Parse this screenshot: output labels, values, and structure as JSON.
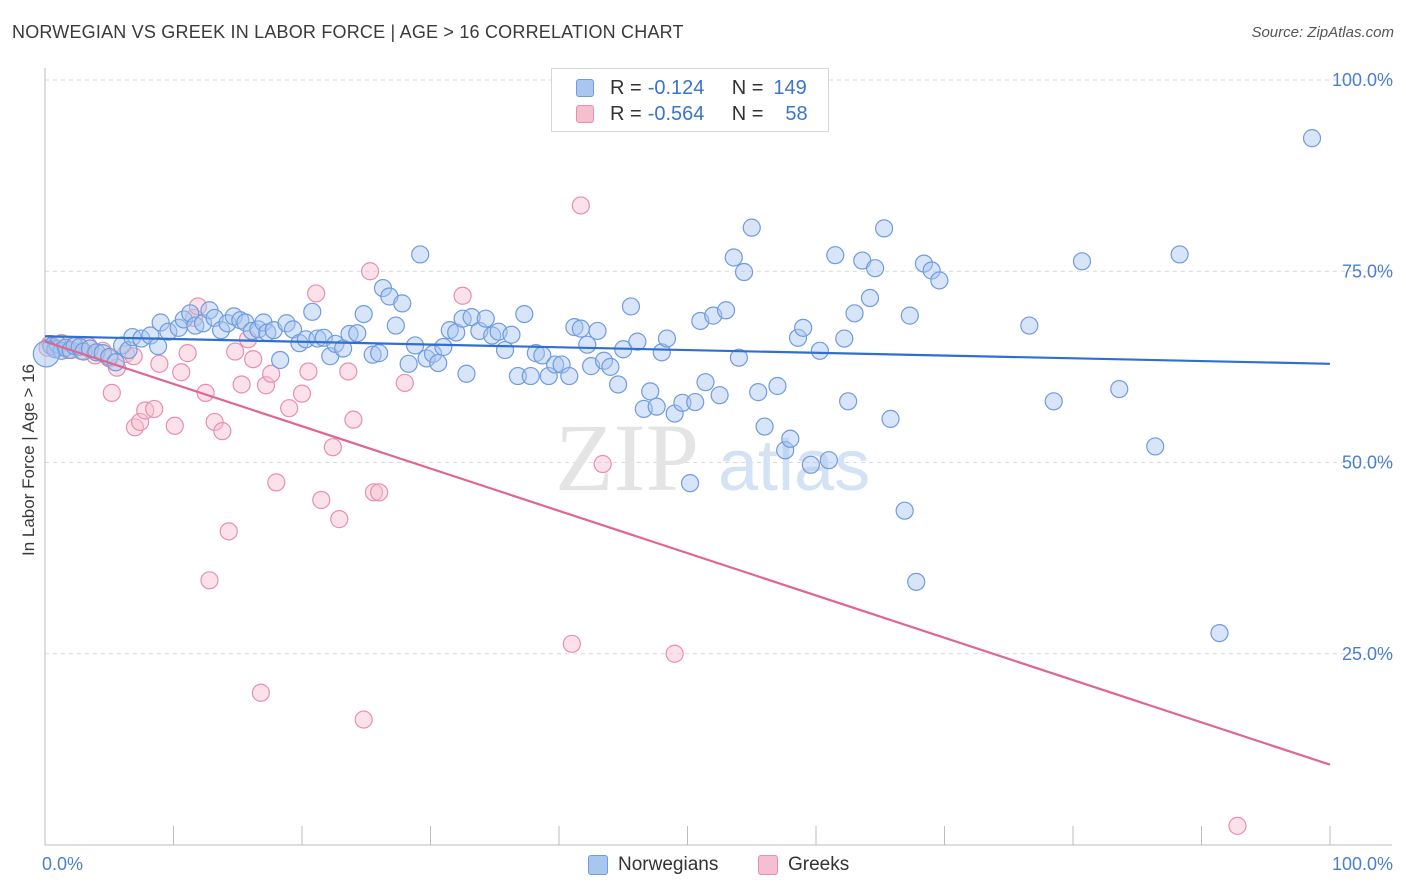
{
  "title": "NORWEGIAN VS GREEK IN LABOR FORCE | AGE > 16 CORRELATION CHART",
  "source": "Source: ZipAtlas.com",
  "watermark": {
    "zip": "ZIP",
    "atlas": "atlas"
  },
  "colors": {
    "blue_fill": "#a9c6ef",
    "blue_stroke": "#6f9be0",
    "blue_line": "#2e6fd1",
    "pink_fill": "#f6bfd0",
    "pink_stroke": "#e98fab",
    "pink_line": "#e06690",
    "grid": "#d9d9d9",
    "tick_text": "#4a7fd0"
  },
  "legend": {
    "rows": [
      {
        "r_label": "R =",
        "r_value": "-0.124",
        "n_label": "N =",
        "n_value": "149"
      },
      {
        "r_label": "R =",
        "r_value": "-0.564",
        "n_label": "N =",
        "n_value": "58"
      }
    ]
  },
  "bottom_legend": {
    "norwegians": "Norwegians",
    "greeks": "Greeks"
  },
  "chart_data": {
    "type": "scatter",
    "title": "NORWEGIAN VS GREEK IN LABOR FORCE | AGE > 16 CORRELATION CHART",
    "xlabel": "",
    "ylabel": "In Labor Force | Age > 16",
    "xlim": [
      0,
      100
    ],
    "ylim": [
      0,
      100
    ],
    "x_tick_labels": [
      "0.0%",
      "100.0%"
    ],
    "y_tick_values": [
      25,
      50,
      75,
      100
    ],
    "y_tick_labels": [
      "25.0%",
      "50.0%",
      "75.0%",
      "100.0%"
    ],
    "grid": true,
    "series": [
      {
        "name": "Norwegians",
        "r": -0.124,
        "n": 149,
        "trend": {
          "x": [
            0,
            100
          ],
          "y": [
            66.5,
            62.9
          ]
        },
        "points": [
          [
            0.5,
            65.2
          ],
          [
            0.8,
            64.8
          ],
          [
            1.0,
            65.4
          ],
          [
            1.3,
            64.6
          ],
          [
            1.6,
            65.0
          ],
          [
            2.0,
            64.7
          ],
          [
            2.3,
            65.2
          ],
          [
            2.7,
            65.1
          ],
          [
            3.0,
            64.5
          ],
          [
            3.5,
            64.9
          ],
          [
            4.0,
            64.4
          ],
          [
            4.5,
            64.3
          ],
          [
            5.0,
            63.8
          ],
          [
            5.5,
            63.1
          ],
          [
            6.0,
            65.3
          ],
          [
            6.5,
            64.7
          ],
          [
            6.8,
            66.4
          ],
          [
            7.5,
            66.2
          ],
          [
            8.2,
            66.6
          ],
          [
            8.8,
            65.2
          ],
          [
            9.0,
            68.3
          ],
          [
            9.6,
            67.1
          ],
          [
            10.4,
            67.6
          ],
          [
            10.8,
            68.7
          ],
          [
            11.3,
            69.5
          ],
          [
            11.7,
            67.9
          ],
          [
            12.3,
            68.2
          ],
          [
            12.8,
            69.9
          ],
          [
            13.2,
            68.9
          ],
          [
            13.7,
            67.3
          ],
          [
            14.2,
            68.2
          ],
          [
            14.7,
            69.1
          ],
          [
            15.2,
            68.6
          ],
          [
            15.6,
            68.3
          ],
          [
            16.1,
            67.2
          ],
          [
            16.6,
            67.4
          ],
          [
            17.0,
            68.3
          ],
          [
            17.3,
            67.0
          ],
          [
            17.8,
            67.3
          ],
          [
            18.3,
            63.4
          ],
          [
            18.8,
            68.2
          ],
          [
            19.3,
            67.4
          ],
          [
            19.8,
            65.6
          ],
          [
            20.3,
            66.1
          ],
          [
            20.8,
            69.7
          ],
          [
            21.2,
            66.2
          ],
          [
            21.7,
            66.3
          ],
          [
            22.2,
            63.9
          ],
          [
            22.6,
            65.5
          ],
          [
            23.2,
            64.9
          ],
          [
            23.7,
            66.8
          ],
          [
            24.3,
            66.9
          ],
          [
            24.8,
            69.4
          ],
          [
            25.5,
            64.1
          ],
          [
            26.0,
            64.3
          ],
          [
            26.3,
            72.8
          ],
          [
            26.8,
            71.7
          ],
          [
            27.3,
            67.9
          ],
          [
            27.8,
            70.8
          ],
          [
            28.3,
            62.9
          ],
          [
            28.8,
            65.3
          ],
          [
            29.2,
            77.2
          ],
          [
            29.7,
            63.6
          ],
          [
            30.2,
            64.2
          ],
          [
            30.6,
            63.0
          ],
          [
            31.0,
            65.1
          ],
          [
            31.5,
            67.3
          ],
          [
            32.0,
            67.0
          ],
          [
            32.5,
            68.8
          ],
          [
            32.8,
            61.6
          ],
          [
            33.2,
            69.0
          ],
          [
            33.8,
            67.2
          ],
          [
            34.3,
            68.8
          ],
          [
            34.8,
            66.6
          ],
          [
            35.3,
            67.1
          ],
          [
            35.8,
            64.7
          ],
          [
            36.3,
            66.7
          ],
          [
            36.8,
            61.3
          ],
          [
            37.3,
            69.4
          ],
          [
            37.8,
            61.3
          ],
          [
            38.2,
            64.3
          ],
          [
            38.7,
            64.0
          ],
          [
            39.2,
            61.3
          ],
          [
            39.7,
            62.8
          ],
          [
            40.2,
            62.8
          ],
          [
            40.8,
            61.3
          ],
          [
            41.2,
            67.7
          ],
          [
            41.7,
            67.5
          ],
          [
            42.2,
            65.4
          ],
          [
            42.5,
            62.6
          ],
          [
            43.0,
            67.2
          ],
          [
            43.5,
            63.3
          ],
          [
            44.0,
            62.5
          ],
          [
            44.6,
            60.2
          ],
          [
            45.0,
            64.8
          ],
          [
            45.6,
            70.4
          ],
          [
            46.1,
            65.8
          ],
          [
            46.6,
            57.0
          ],
          [
            47.1,
            59.3
          ],
          [
            47.6,
            57.3
          ],
          [
            48.0,
            64.4
          ],
          [
            48.4,
            66.2
          ],
          [
            49.0,
            56.4
          ],
          [
            49.6,
            57.8
          ],
          [
            50.2,
            47.3
          ],
          [
            50.6,
            57.9
          ],
          [
            51.0,
            68.5
          ],
          [
            51.4,
            60.5
          ],
          [
            52.0,
            69.2
          ],
          [
            52.5,
            58.8
          ],
          [
            53.0,
            69.9
          ],
          [
            53.6,
            76.8
          ],
          [
            54.0,
            63.7
          ],
          [
            54.4,
            74.9
          ],
          [
            55.0,
            80.7
          ],
          [
            55.5,
            59.2
          ],
          [
            56.0,
            54.7
          ],
          [
            57.0,
            60.0
          ],
          [
            57.6,
            51.6
          ],
          [
            58.0,
            53.1
          ],
          [
            58.6,
            66.3
          ],
          [
            59.0,
            67.6
          ],
          [
            59.6,
            49.7
          ],
          [
            60.3,
            64.6
          ],
          [
            61.0,
            50.3
          ],
          [
            61.5,
            77.1
          ],
          [
            62.2,
            66.2
          ],
          [
            62.5,
            58.0
          ],
          [
            63.0,
            69.5
          ],
          [
            63.6,
            76.4
          ],
          [
            64.2,
            71.5
          ],
          [
            64.6,
            75.4
          ],
          [
            65.3,
            80.6
          ],
          [
            65.8,
            55.7
          ],
          [
            66.9,
            43.7
          ],
          [
            67.3,
            69.2
          ],
          [
            67.8,
            34.4
          ],
          [
            68.4,
            76.0
          ],
          [
            69.0,
            75.1
          ],
          [
            69.6,
            73.8
          ],
          [
            76.6,
            67.9
          ],
          [
            78.5,
            58.0
          ],
          [
            80.7,
            76.3
          ],
          [
            83.6,
            59.6
          ],
          [
            86.4,
            52.1
          ],
          [
            88.3,
            77.2
          ],
          [
            91.4,
            27.7
          ],
          [
            98.6,
            92.4
          ]
        ]
      },
      {
        "name": "Greeks",
        "r": -0.564,
        "n": 58,
        "trend": {
          "x": [
            0,
            100
          ],
          "y": [
            65.8,
            10.5
          ]
        },
        "points": [
          [
            0.4,
            65.5
          ],
          [
            0.9,
            64.9
          ],
          [
            1.3,
            65.6
          ],
          [
            1.8,
            64.7
          ],
          [
            2.3,
            65.3
          ],
          [
            2.8,
            64.6
          ],
          [
            3.4,
            65.2
          ],
          [
            3.9,
            64.0
          ],
          [
            4.5,
            64.6
          ],
          [
            5.0,
            63.6
          ],
          [
            5.2,
            59.1
          ],
          [
            5.6,
            62.4
          ],
          [
            6.3,
            64.2
          ],
          [
            6.9,
            63.9
          ],
          [
            7.0,
            54.6
          ],
          [
            7.4,
            55.3
          ],
          [
            7.8,
            56.8
          ],
          [
            8.5,
            57.0
          ],
          [
            8.9,
            62.9
          ],
          [
            10.1,
            54.8
          ],
          [
            10.6,
            61.8
          ],
          [
            11.1,
            64.3
          ],
          [
            11.6,
            68.9
          ],
          [
            11.9,
            70.4
          ],
          [
            12.5,
            59.1
          ],
          [
            12.8,
            34.6
          ],
          [
            13.2,
            55.3
          ],
          [
            13.8,
            54.1
          ],
          [
            14.3,
            41.0
          ],
          [
            14.8,
            64.5
          ],
          [
            15.3,
            60.2
          ],
          [
            15.8,
            66.1
          ],
          [
            16.2,
            63.5
          ],
          [
            16.8,
            19.9
          ],
          [
            17.2,
            60.1
          ],
          [
            17.6,
            61.6
          ],
          [
            18.0,
            47.4
          ],
          [
            19.0,
            57.1
          ],
          [
            20.0,
            59.0
          ],
          [
            20.5,
            61.9
          ],
          [
            21.1,
            72.1
          ],
          [
            21.5,
            45.1
          ],
          [
            22.4,
            52.0
          ],
          [
            22.9,
            42.6
          ],
          [
            23.6,
            61.9
          ],
          [
            24.0,
            55.6
          ],
          [
            24.8,
            16.4
          ],
          [
            25.3,
            75.0
          ],
          [
            25.6,
            46.1
          ],
          [
            26.0,
            46.1
          ],
          [
            28.0,
            60.4
          ],
          [
            32.5,
            71.8
          ],
          [
            41.0,
            26.3
          ],
          [
            41.7,
            83.6
          ],
          [
            43.4,
            49.8
          ],
          [
            49.0,
            25.0
          ],
          [
            92.8,
            2.5
          ],
          [
            0.2,
            65.0
          ]
        ]
      }
    ]
  }
}
